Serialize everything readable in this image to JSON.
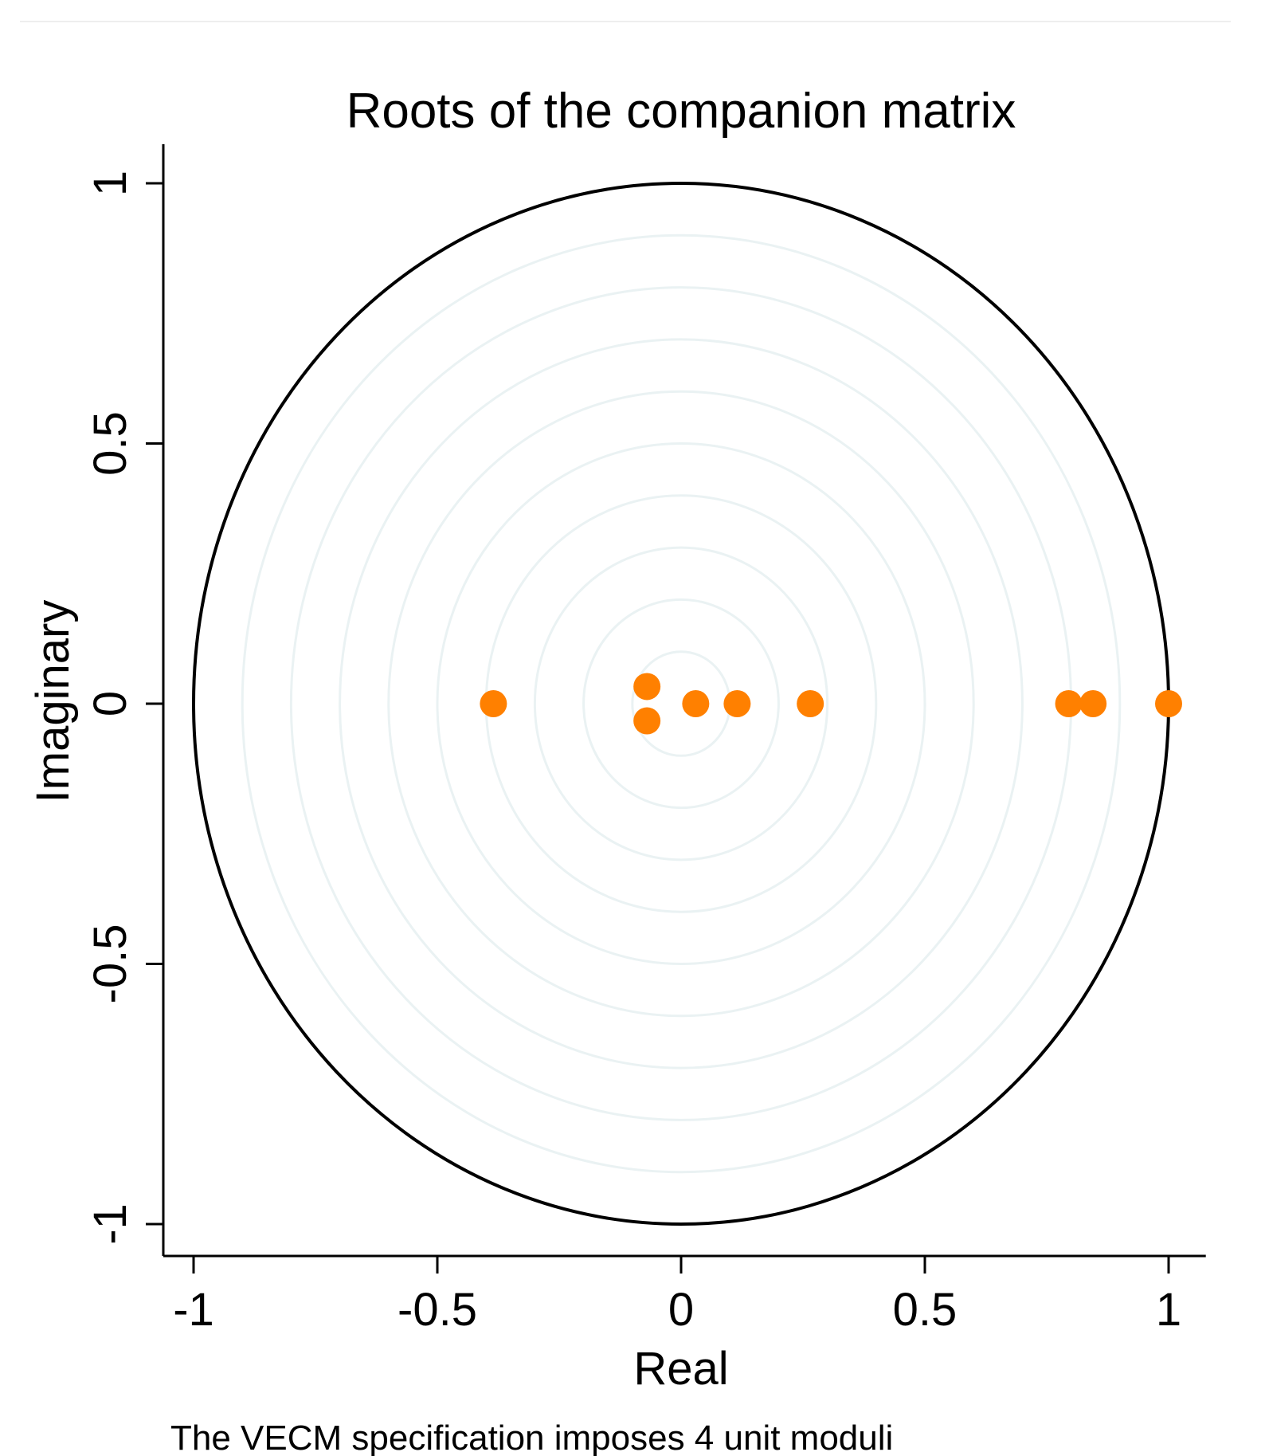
{
  "chart_data": {
    "type": "scatter",
    "title": "Roots of the companion matrix",
    "xlabel": "Real",
    "ylabel": "Imaginary",
    "note": "The VECM specification imposes 4 unit moduli",
    "xlim": [
      -1.06,
      1.06
    ],
    "ylim": [
      -1.06,
      1.06
    ],
    "x_ticks": [
      -1,
      -0.5,
      0,
      0.5,
      1
    ],
    "x_tick_labels": [
      "-1",
      "-0.5",
      "0",
      "0.5",
      "1"
    ],
    "y_ticks": [
      -1,
      -0.5,
      0,
      0.5,
      1
    ],
    "y_tick_labels": [
      "-1",
      "-0.5",
      "0",
      "0.5",
      "1"
    ],
    "unit_circle_radius": 1,
    "reference_circle_radii": [
      0.1,
      0.2,
      0.3,
      0.4,
      0.5,
      0.6,
      0.7,
      0.8,
      0.9
    ],
    "grid": false,
    "legend": "none",
    "marker_color": "#ff8000",
    "unit_circle_color": "#000000",
    "reference_circle_color": "#eaf2f3",
    "points": [
      {
        "x": -0.385,
        "y": 0
      },
      {
        "x": -0.07,
        "y": 0.033
      },
      {
        "x": -0.07,
        "y": -0.033
      },
      {
        "x": 0.03,
        "y": 0
      },
      {
        "x": 0.115,
        "y": 0
      },
      {
        "x": 0.265,
        "y": 0
      },
      {
        "x": 0.795,
        "y": 0
      },
      {
        "x": 0.845,
        "y": 0
      },
      {
        "x": 1.0,
        "y": 0
      }
    ]
  }
}
